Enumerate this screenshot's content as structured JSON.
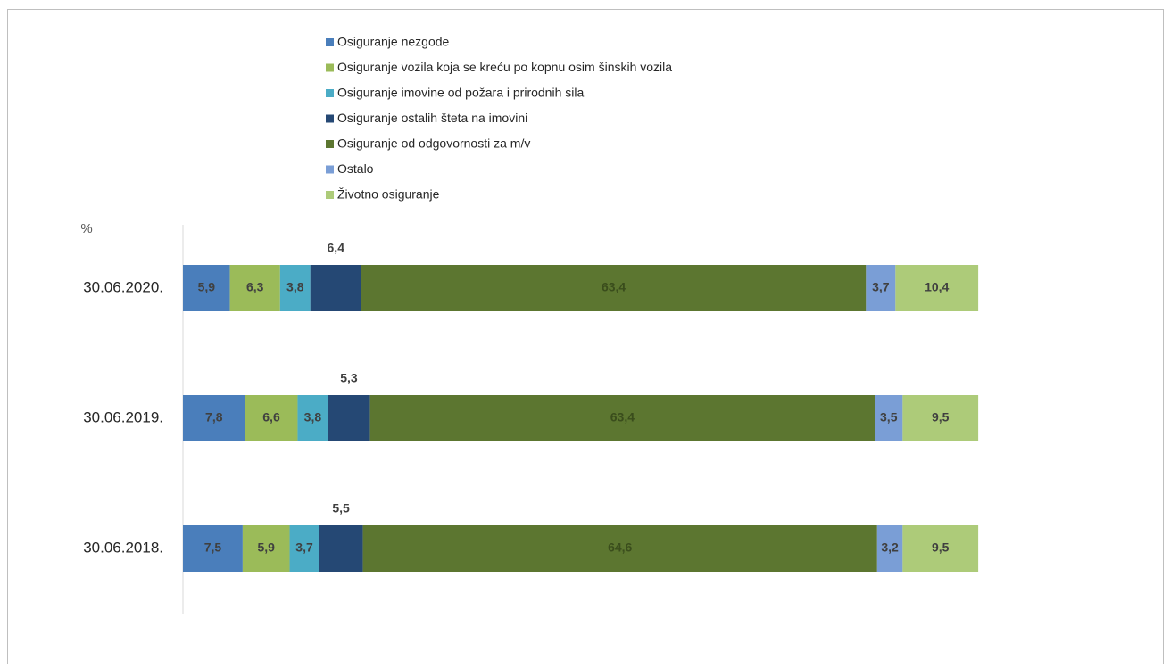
{
  "chart_data": {
    "type": "stacked-bar-horizontal",
    "value_axis_label": "%",
    "categories": [
      "30.06.2020.",
      "30.06.2019.",
      "30.06.2018."
    ],
    "xlim": [
      0,
      100
    ],
    "series": [
      {
        "name": "Osiguranje nezgode",
        "color": "#4a7ebb",
        "values": [
          5.9,
          7.8,
          7.5
        ],
        "value_labels": [
          "5,9",
          "7,8",
          "7,5"
        ]
      },
      {
        "name": "Osiguranje vozila koja se kreću po kopnu osim šinskih vozila",
        "color": "#9bbb59",
        "values": [
          6.3,
          6.6,
          5.9
        ],
        "value_labels": [
          "6,3",
          "6,6",
          "5,9"
        ]
      },
      {
        "name": "Osiguranje imovine od požara i prirodnih sila",
        "color": "#4bacc6",
        "values": [
          3.8,
          3.8,
          3.7
        ],
        "value_labels": [
          "3,8",
          "3,8",
          "3,7"
        ]
      },
      {
        "name": "Osiguranje ostalih šteta na imovini",
        "color": "#254874",
        "values": [
          6.4,
          5.3,
          5.5
        ],
        "value_labels": [
          "6,4",
          "5,3",
          "5,5"
        ]
      },
      {
        "name": "Osiguranje od odgovornosti za m/v",
        "color": "#5c7630",
        "values": [
          63.4,
          63.4,
          64.6
        ],
        "value_labels": [
          "63,4",
          "63,4",
          "64,6"
        ]
      },
      {
        "name": "Ostalo",
        "color": "#7a9ed6",
        "values": [
          3.7,
          3.5,
          3.2
        ],
        "value_labels": [
          "3,7",
          "3,5",
          "3,2"
        ]
      },
      {
        "name": "Životno osiguranje",
        "color": "#adcb79",
        "values": [
          10.4,
          9.5,
          9.5
        ],
        "value_labels": [
          "10,4",
          "9,5",
          "9,5"
        ]
      }
    ]
  }
}
